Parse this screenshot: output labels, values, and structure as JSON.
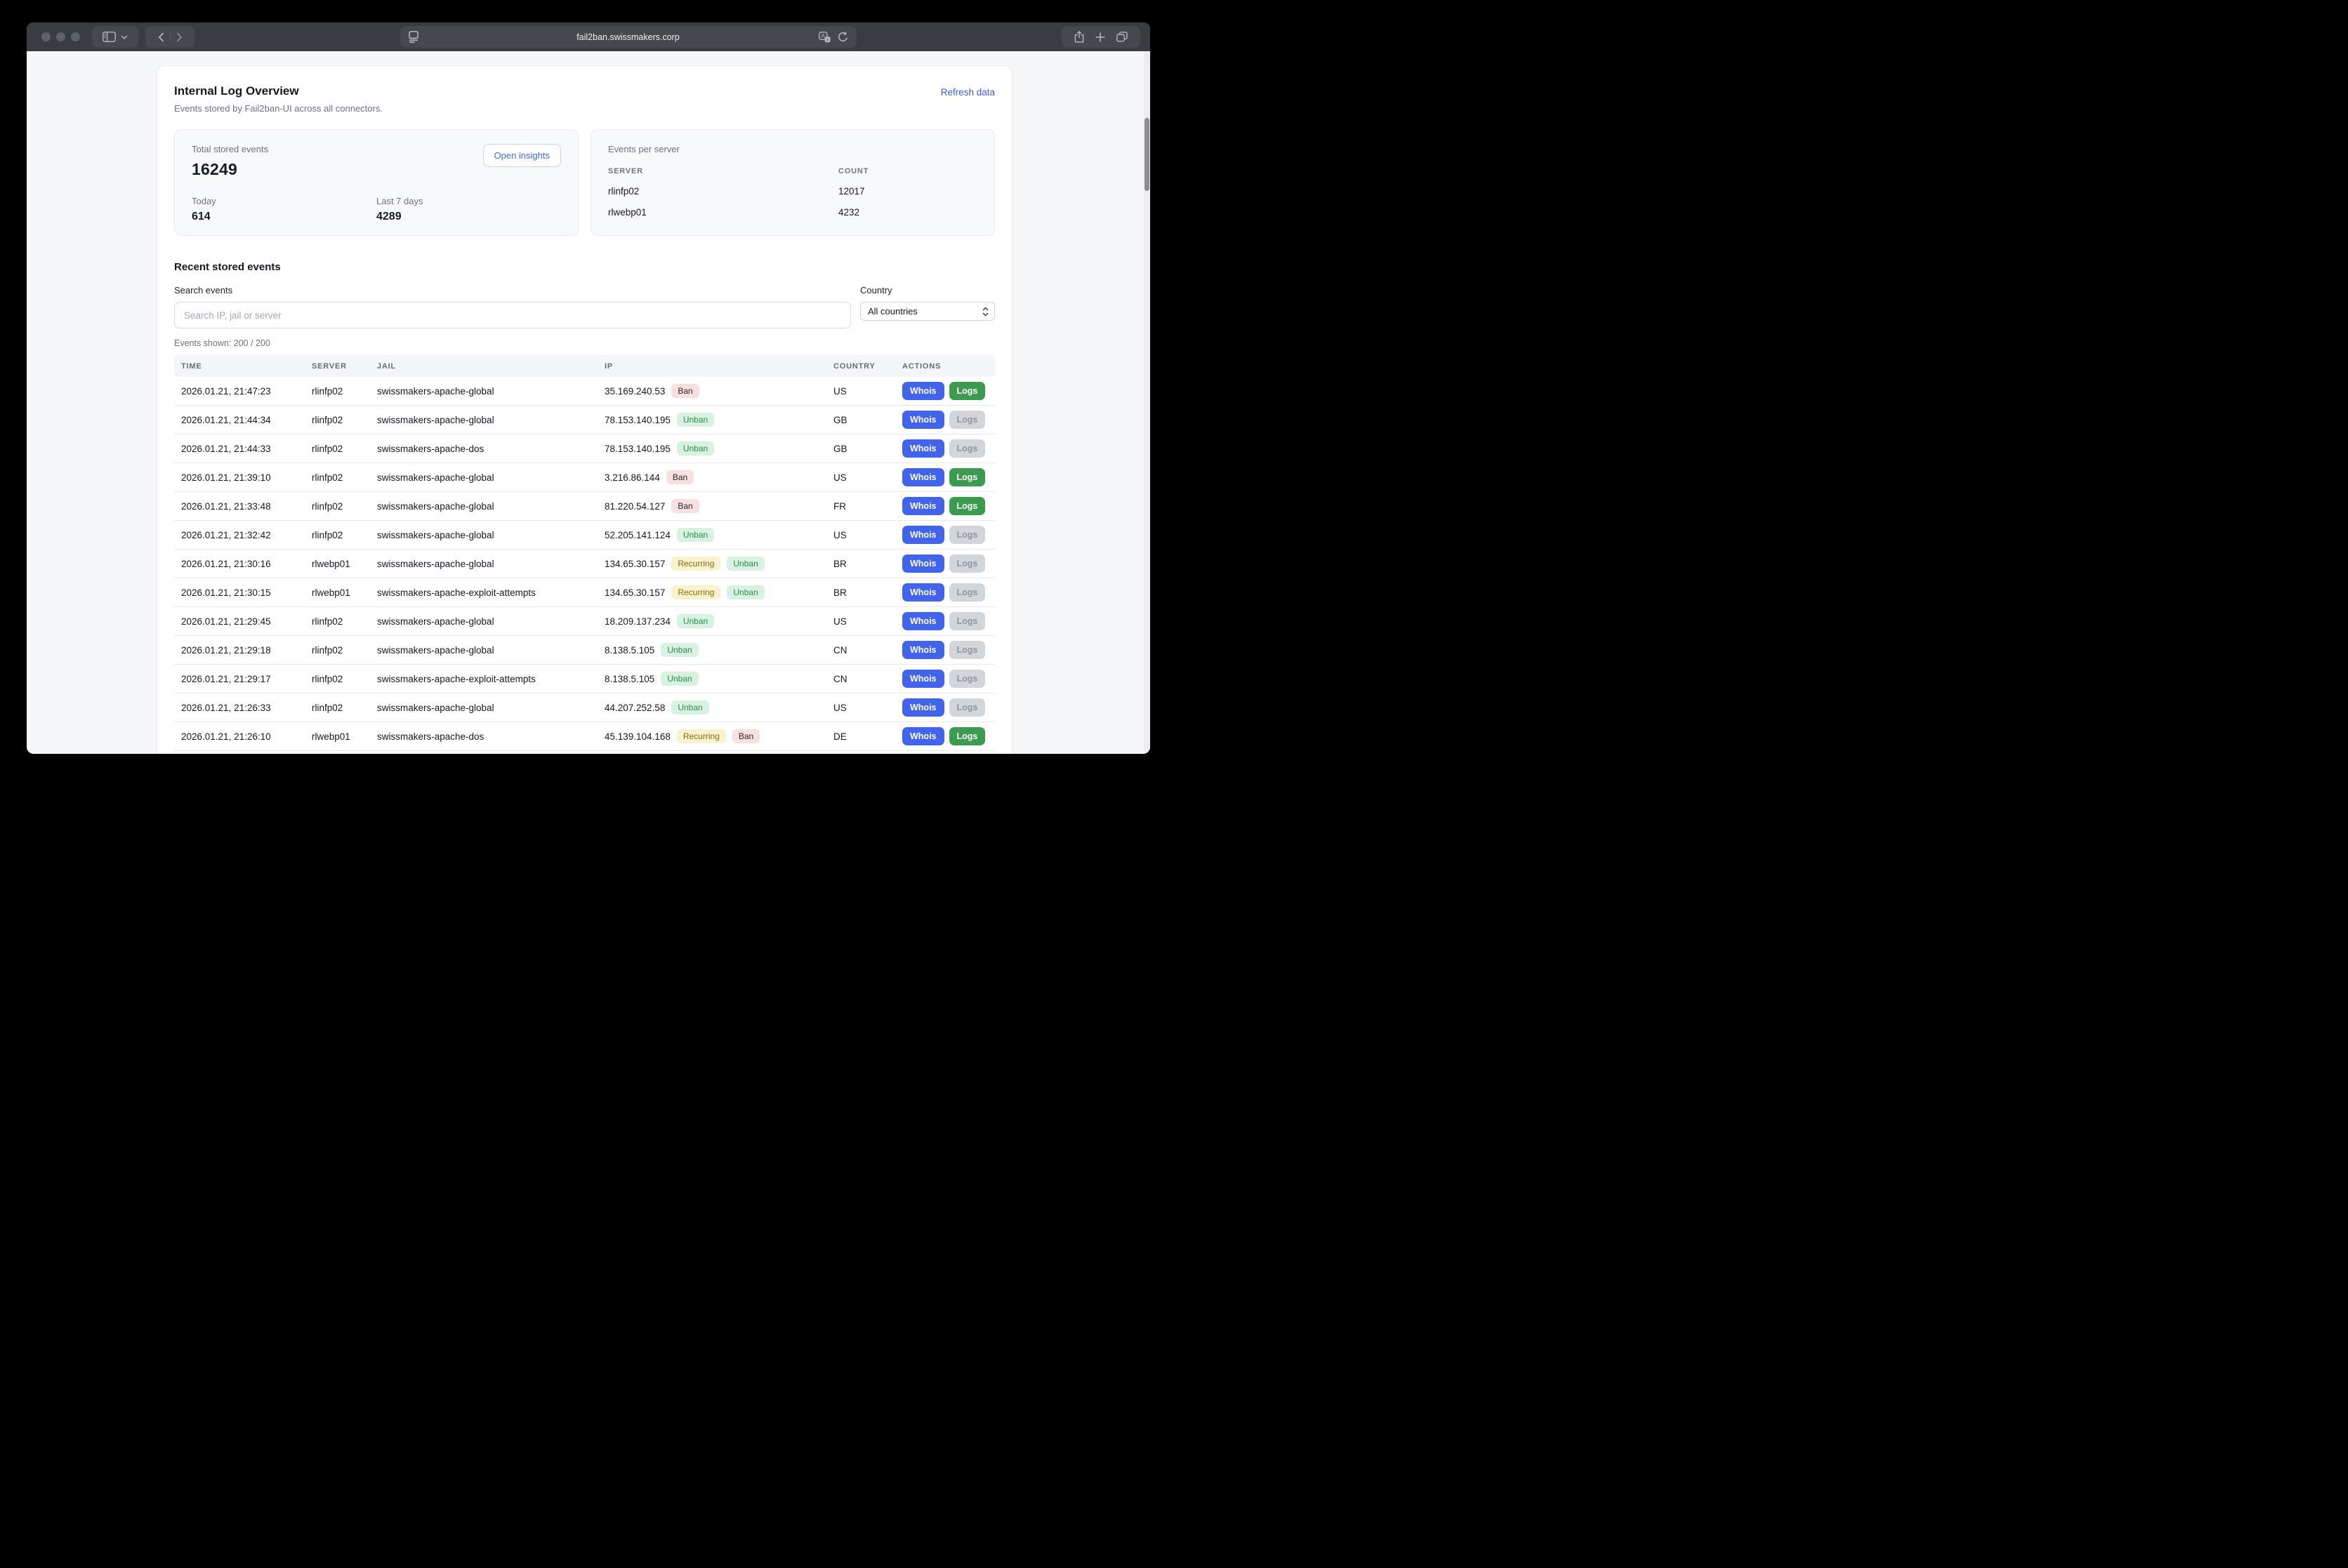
{
  "browser": {
    "url": "fail2ban.swissmakers.corp",
    "icons": [
      "sidebar-icon",
      "chevron-down-icon",
      "back-icon",
      "forward-icon",
      "reader-icon",
      "translate-icon",
      "reload-icon",
      "share-icon",
      "plus-icon",
      "tabs-icon"
    ]
  },
  "page": {
    "title": "Internal Log Overview",
    "subtitle": "Events stored by Fail2ban-UI across all connectors.",
    "refresh_link": "Refresh data",
    "stats": {
      "total_label": "Total stored events",
      "total_value": "16249",
      "open_insights_label": "Open insights",
      "today_label": "Today",
      "today_value": "614",
      "week_label": "Last 7 days",
      "week_value": "4289"
    },
    "per_server": {
      "title": "Events per server",
      "columns": [
        "SERVER",
        "COUNT"
      ],
      "rows": [
        {
          "server": "rlinfp02",
          "count": "12017"
        },
        {
          "server": "rlwebp01",
          "count": "4232"
        }
      ]
    },
    "events": {
      "heading": "Recent stored events",
      "search_label": "Search events",
      "search_placeholder": "Search IP, jail or server",
      "search_value": "",
      "country_label": "Country",
      "country_value": "All countries",
      "shown_text": "Events shown: 200 / 200",
      "columns": [
        "TIME",
        "SERVER",
        "JAIL",
        "IP",
        "COUNTRY",
        "ACTIONS"
      ],
      "action_labels": {
        "whois": "Whois",
        "logs": "Logs"
      },
      "rows": [
        {
          "time": "2026.01.21, 21:47:23",
          "server": "rlinfp02",
          "jail": "swissmakers-apache-global",
          "ip": "35.169.240.53",
          "badges": [
            "Ban"
          ],
          "country": "US",
          "logs_active": true
        },
        {
          "time": "2026.01.21, 21:44:34",
          "server": "rlinfp02",
          "jail": "swissmakers-apache-global",
          "ip": "78.153.140.195",
          "badges": [
            "Unban"
          ],
          "country": "GB",
          "logs_active": false
        },
        {
          "time": "2026.01.21, 21:44:33",
          "server": "rlinfp02",
          "jail": "swissmakers-apache-dos",
          "ip": "78.153.140.195",
          "badges": [
            "Unban"
          ],
          "country": "GB",
          "logs_active": false
        },
        {
          "time": "2026.01.21, 21:39:10",
          "server": "rlinfp02",
          "jail": "swissmakers-apache-global",
          "ip": "3.216.86.144",
          "badges": [
            "Ban"
          ],
          "country": "US",
          "logs_active": true
        },
        {
          "time": "2026.01.21, 21:33:48",
          "server": "rlinfp02",
          "jail": "swissmakers-apache-global",
          "ip": "81.220.54.127",
          "badges": [
            "Ban"
          ],
          "country": "FR",
          "logs_active": true
        },
        {
          "time": "2026.01.21, 21:32:42",
          "server": "rlinfp02",
          "jail": "swissmakers-apache-global",
          "ip": "52.205.141.124",
          "badges": [
            "Unban"
          ],
          "country": "US",
          "logs_active": false
        },
        {
          "time": "2026.01.21, 21:30:16",
          "server": "rlwebp01",
          "jail": "swissmakers-apache-global",
          "ip": "134.65.30.157",
          "badges": [
            "Recurring",
            "Unban"
          ],
          "country": "BR",
          "logs_active": false
        },
        {
          "time": "2026.01.21, 21:30:15",
          "server": "rlwebp01",
          "jail": "swissmakers-apache-exploit-attempts",
          "ip": "134.65.30.157",
          "badges": [
            "Recurring",
            "Unban"
          ],
          "country": "BR",
          "logs_active": false
        },
        {
          "time": "2026.01.21, 21:29:45",
          "server": "rlinfp02",
          "jail": "swissmakers-apache-global",
          "ip": "18.209.137.234",
          "badges": [
            "Unban"
          ],
          "country": "US",
          "logs_active": false
        },
        {
          "time": "2026.01.21, 21:29:18",
          "server": "rlinfp02",
          "jail": "swissmakers-apache-global",
          "ip": "8.138.5.105",
          "badges": [
            "Unban"
          ],
          "country": "CN",
          "logs_active": false
        },
        {
          "time": "2026.01.21, 21:29:17",
          "server": "rlinfp02",
          "jail": "swissmakers-apache-exploit-attempts",
          "ip": "8.138.5.105",
          "badges": [
            "Unban"
          ],
          "country": "CN",
          "logs_active": false
        },
        {
          "time": "2026.01.21, 21:26:33",
          "server": "rlinfp02",
          "jail": "swissmakers-apache-global",
          "ip": "44.207.252.58",
          "badges": [
            "Unban"
          ],
          "country": "US",
          "logs_active": false
        },
        {
          "time": "2026.01.21, 21:26:10",
          "server": "rlwebp01",
          "jail": "swissmakers-apache-dos",
          "ip": "45.139.104.168",
          "badges": [
            "Recurring",
            "Ban"
          ],
          "country": "DE",
          "logs_active": true
        }
      ]
    },
    "colors": {
      "accent_blue": "#4263eb",
      "link_blue": "#3b5bdb",
      "logs_green": "#3d9b4f",
      "ban_bg": "#f9dfdf",
      "unban_bg": "#d8f2e2",
      "unban_text": "#2e8b47",
      "recurring_bg": "#faf2cc",
      "recurring_text": "#8a6a15",
      "titlebar": "#393d41"
    }
  }
}
